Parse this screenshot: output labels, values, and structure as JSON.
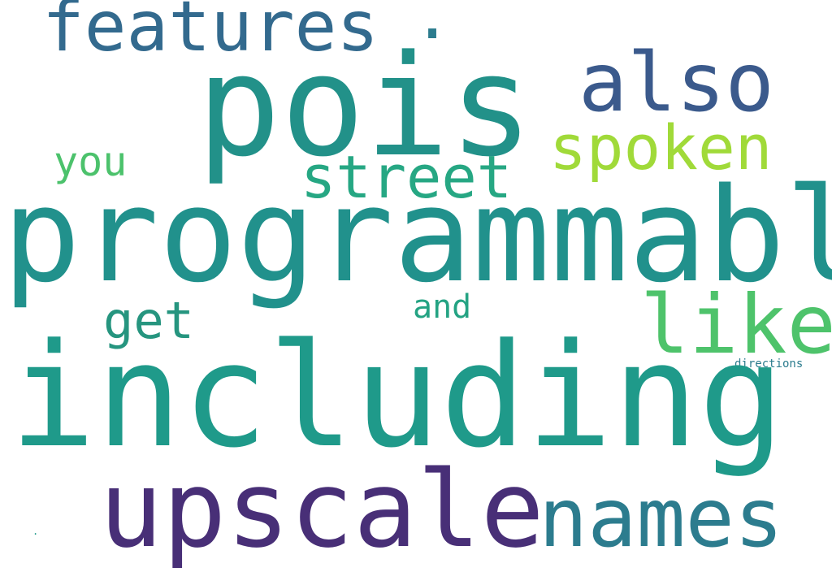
{
  "words": [
    {
      "key": "pois",
      "text": "pois",
      "color": "#229189"
    },
    {
      "key": "programmable",
      "text": "programmable",
      "color": "#21918c"
    },
    {
      "key": "including",
      "text": "including",
      "color": "#1f9a8a"
    },
    {
      "key": "upscale",
      "text": "upscale",
      "color": "#482f77"
    },
    {
      "key": "names",
      "text": "names",
      "color": "#2c7c8e"
    },
    {
      "key": "also",
      "text": "also",
      "color": "#3b5a8c"
    },
    {
      "key": "features",
      "text": "features",
      "color": "#336a8e"
    },
    {
      "key": "spoken",
      "text": "spoken",
      "color": "#a0da39"
    },
    {
      "key": "like",
      "text": "like",
      "color": "#4ec36b"
    },
    {
      "key": "street",
      "text": "street",
      "color": "#26a783"
    },
    {
      "key": "get",
      "text": "get",
      "color": "#26957f"
    },
    {
      "key": "you",
      "text": "you",
      "color": "#4cc26c"
    },
    {
      "key": "and",
      "text": "and",
      "color": "#24a383"
    },
    {
      "key": "dot",
      "text": ".",
      "color": "#2c7c8e"
    },
    {
      "key": "directions",
      "text": "directions",
      "color": "#2c7c8e"
    },
    {
      "key": "tinydot",
      "text": ".",
      "color": "#1f9a8a"
    }
  ]
}
